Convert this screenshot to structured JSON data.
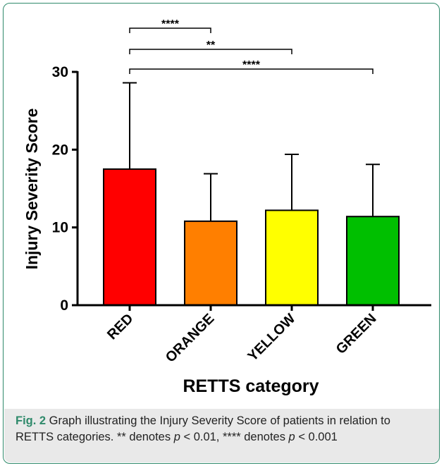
{
  "chart_data": {
    "type": "bar",
    "categories": [
      "RED",
      "ORANGE",
      "YELLOW",
      "GREEN"
    ],
    "values": [
      17.5,
      10.8,
      12.2,
      11.4
    ],
    "error_upper": [
      28.6,
      16.9,
      19.4,
      18.1
    ],
    "colors": [
      "#ff0000",
      "#ff7f00",
      "#ffff00",
      "#00bf00"
    ],
    "xlabel": "RETTS category",
    "ylabel": "Injury Severity Score",
    "ylim": [
      0,
      30
    ],
    "yticks": [
      "0",
      "10",
      "20",
      "30"
    ],
    "significance": [
      {
        "from": "RED",
        "to": "ORANGE",
        "label": "****"
      },
      {
        "from": "RED",
        "to": "YELLOW",
        "label": "**"
      },
      {
        "from": "RED",
        "to": "GREEN",
        "label": "****"
      }
    ],
    "grid": false
  },
  "caption": {
    "fig_label": "Fig. 2",
    "text_1": " Graph illustrating the Injury Severity Score of patients in relation to RETTS categories. ** denotes ",
    "p1": "p",
    "text_2": " < 0.01, **** denotes ",
    "p2": "p",
    "text_3": " < 0.001"
  }
}
